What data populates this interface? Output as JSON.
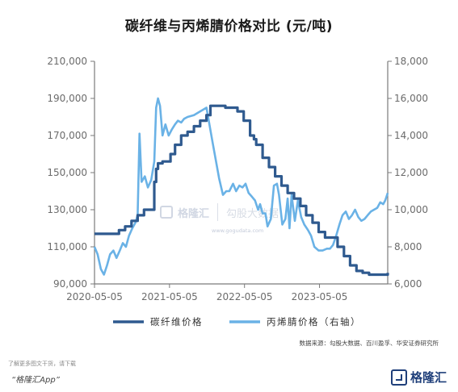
{
  "title": "碳纤维与丙烯腈价格对比 (元/吨)",
  "source": "数据来源：勾股大数据、百川盈孚、华安证券研究所",
  "footer": {
    "hint": "了解更多图文干货，请下载",
    "app": "“格隆汇App”"
  },
  "logo": {
    "text": "格隆汇"
  },
  "watermark": {
    "text1": "格隆汇",
    "text2": "勾股大数据",
    "url": "www.gogudata.com"
  },
  "colors": {
    "series1": "#2f5a8f",
    "series2": "#6ab2e6",
    "axis": "#7a7a7a"
  },
  "chart_data": {
    "type": "line",
    "title": "碳纤维与丙烯腈价格对比 (元/吨)",
    "xticks": [
      "2020-05-05",
      "2021-05-05",
      "2022-05-05",
      "2023-05-05"
    ],
    "x_range": [
      "2020-05-05",
      "2024-04-01"
    ],
    "y_left": {
      "range": [
        90000,
        210000
      ],
      "ticks": [
        "90,000",
        "110,000",
        "130,000",
        "150,000",
        "170,000",
        "190,000",
        "210,000"
      ]
    },
    "y_right": {
      "range": [
        6000,
        18000
      ],
      "ticks": [
        "6,000",
        "8,000",
        "10,000",
        "12,000",
        "14,000",
        "16,000",
        "18,000"
      ]
    },
    "grid": false,
    "legend_placement": "bottom",
    "series": [
      {
        "name": "碳纤维价格",
        "axis": "left",
        "points": [
          [
            "2020-05-05",
            117000
          ],
          [
            "2020-08-01",
            117000
          ],
          [
            "2020-09-01",
            119000
          ],
          [
            "2020-10-01",
            121000
          ],
          [
            "2020-11-01",
            124000
          ],
          [
            "2020-12-01",
            127000
          ],
          [
            "2021-01-01",
            130000
          ],
          [
            "2021-02-10",
            130000
          ],
          [
            "2021-02-20",
            145000
          ],
          [
            "2021-03-01",
            152000
          ],
          [
            "2021-03-10",
            155000
          ],
          [
            "2021-04-01",
            156000
          ],
          [
            "2021-05-10",
            160000
          ],
          [
            "2021-06-01",
            165000
          ],
          [
            "2021-07-01",
            170000
          ],
          [
            "2021-08-01",
            172000
          ],
          [
            "2021-09-01",
            175000
          ],
          [
            "2021-10-01",
            178000
          ],
          [
            "2021-11-01",
            181000
          ],
          [
            "2021-11-20",
            186000
          ],
          [
            "2021-12-20",
            186000
          ],
          [
            "2022-02-01",
            185000
          ],
          [
            "2022-03-01",
            185000
          ],
          [
            "2022-04-01",
            183000
          ],
          [
            "2022-05-01",
            178000
          ],
          [
            "2022-06-01",
            170000
          ],
          [
            "2022-06-20",
            168000
          ],
          [
            "2022-07-01",
            165000
          ],
          [
            "2022-08-01",
            158000
          ],
          [
            "2022-09-01",
            153000
          ],
          [
            "2022-10-01",
            148000
          ],
          [
            "2022-11-01",
            143000
          ],
          [
            "2022-12-01",
            139000
          ],
          [
            "2023-01-01",
            136000
          ],
          [
            "2023-02-01",
            132000
          ],
          [
            "2023-03-01",
            127000
          ],
          [
            "2023-04-01",
            123000
          ],
          [
            "2023-05-01",
            118000
          ],
          [
            "2023-06-01",
            115000
          ],
          [
            "2023-07-01",
            115000
          ],
          [
            "2023-08-01",
            110000
          ],
          [
            "2023-09-01",
            105000
          ],
          [
            "2023-10-01",
            100000
          ],
          [
            "2023-11-01",
            97000
          ],
          [
            "2023-12-01",
            96000
          ],
          [
            "2024-01-01",
            95000
          ],
          [
            "2024-03-01",
            95000
          ],
          [
            "2024-04-01",
            96000
          ]
        ]
      },
      {
        "name": "丙烯腈价格（右轴）",
        "axis": "right",
        "points": [
          [
            "2020-05-05",
            8000
          ],
          [
            "2020-05-20",
            7600
          ],
          [
            "2020-06-05",
            6800
          ],
          [
            "2020-06-20",
            6500
          ],
          [
            "2020-07-05",
            7000
          ],
          [
            "2020-07-20",
            7600
          ],
          [
            "2020-08-05",
            7800
          ],
          [
            "2020-08-20",
            7400
          ],
          [
            "2020-09-05",
            7800
          ],
          [
            "2020-09-20",
            8200
          ],
          [
            "2020-10-05",
            8000
          ],
          [
            "2020-10-20",
            8600
          ],
          [
            "2020-11-05",
            9000
          ],
          [
            "2020-11-20",
            9300
          ],
          [
            "2020-12-01",
            9700
          ],
          [
            "2020-12-10",
            14100
          ],
          [
            "2020-12-20",
            11500
          ],
          [
            "2021-01-05",
            11800
          ],
          [
            "2021-01-20",
            11200
          ],
          [
            "2021-02-05",
            11600
          ],
          [
            "2021-02-20",
            12600
          ],
          [
            "2021-03-01",
            15500
          ],
          [
            "2021-03-10",
            16000
          ],
          [
            "2021-03-20",
            15600
          ],
          [
            "2021-04-01",
            14000
          ],
          [
            "2021-04-15",
            14600
          ],
          [
            "2021-05-01",
            14000
          ],
          [
            "2021-05-15",
            14300
          ],
          [
            "2021-06-01",
            14600
          ],
          [
            "2021-06-15",
            14800
          ],
          [
            "2021-07-01",
            14700
          ],
          [
            "2021-07-15",
            14900
          ],
          [
            "2021-08-01",
            15000
          ],
          [
            "2021-09-01",
            15100
          ],
          [
            "2021-10-01",
            15300
          ],
          [
            "2021-11-01",
            15500
          ],
          [
            "2021-12-01",
            13600
          ],
          [
            "2022-01-01",
            11700
          ],
          [
            "2022-01-20",
            10800
          ],
          [
            "2022-02-05",
            11000
          ],
          [
            "2022-02-20",
            11000
          ],
          [
            "2022-03-10",
            11400
          ],
          [
            "2022-03-25",
            11000
          ],
          [
            "2022-04-10",
            11300
          ],
          [
            "2022-04-25",
            11200
          ],
          [
            "2022-05-10",
            11400
          ],
          [
            "2022-05-25",
            10900
          ],
          [
            "2022-06-10",
            10700
          ],
          [
            "2022-06-25",
            10500
          ],
          [
            "2022-07-10",
            10000
          ],
          [
            "2022-07-20",
            10300
          ],
          [
            "2022-08-01",
            9800
          ],
          [
            "2022-08-15",
            9800
          ],
          [
            "2022-08-25",
            9100
          ],
          [
            "2022-09-10",
            9500
          ],
          [
            "2022-09-25",
            11300
          ],
          [
            "2022-10-10",
            11400
          ],
          [
            "2022-10-20",
            10800
          ],
          [
            "2022-11-05",
            9200
          ],
          [
            "2022-11-20",
            9500
          ],
          [
            "2022-12-01",
            10600
          ],
          [
            "2022-12-10",
            9000
          ],
          [
            "2022-12-20",
            10800
          ],
          [
            "2023-01-05",
            9400
          ],
          [
            "2023-01-20",
            10500
          ],
          [
            "2023-02-05",
            9600
          ],
          [
            "2023-02-20",
            9200
          ],
          [
            "2023-03-10",
            8900
          ],
          [
            "2023-03-25",
            8600
          ],
          [
            "2023-04-10",
            8000
          ],
          [
            "2023-05-01",
            7800
          ],
          [
            "2023-05-20",
            7800
          ],
          [
            "2023-06-10",
            7900
          ],
          [
            "2023-06-25",
            7900
          ],
          [
            "2023-07-10",
            8100
          ],
          [
            "2023-07-25",
            8600
          ],
          [
            "2023-08-10",
            9200
          ],
          [
            "2023-08-25",
            9700
          ],
          [
            "2023-09-10",
            9900
          ],
          [
            "2023-09-25",
            9500
          ],
          [
            "2023-10-10",
            9700
          ],
          [
            "2023-10-25",
            10000
          ],
          [
            "2023-11-10",
            9600
          ],
          [
            "2023-11-25",
            9400
          ],
          [
            "2023-12-10",
            9500
          ],
          [
            "2023-12-25",
            9700
          ],
          [
            "2024-01-10",
            9900
          ],
          [
            "2024-01-25",
            10000
          ],
          [
            "2024-02-10",
            10100
          ],
          [
            "2024-02-25",
            10400
          ],
          [
            "2024-03-10",
            10300
          ],
          [
            "2024-03-20",
            10500
          ],
          [
            "2024-04-01",
            10900
          ]
        ]
      }
    ]
  }
}
